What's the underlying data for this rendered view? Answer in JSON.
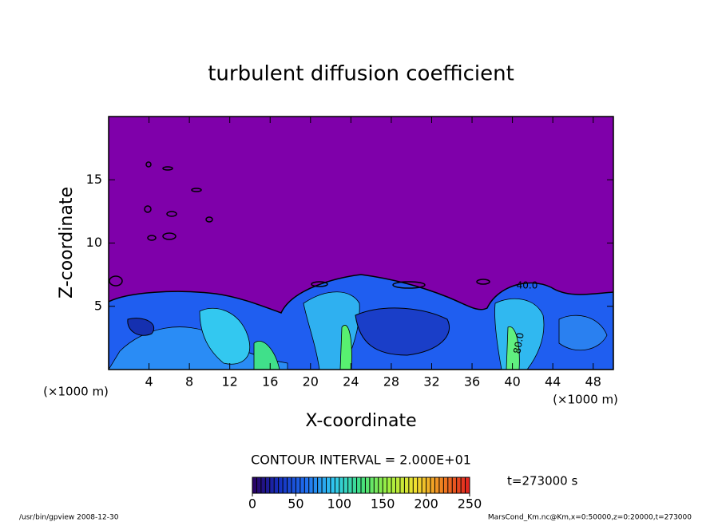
{
  "chart_data": {
    "type": "contour",
    "title": "turbulent diffusion coefficient",
    "x_label": "X-coordinate",
    "y_label": "Z-coordinate",
    "x_unit": "(×1000 m)",
    "y_unit": "(×1000 m)",
    "xlim": [
      0,
      50
    ],
    "ylim": [
      0,
      20
    ],
    "xticks": [
      4,
      8,
      12,
      16,
      20,
      24,
      28,
      32,
      36,
      40,
      44,
      48
    ],
    "yticks": [
      5,
      10,
      15
    ],
    "contour_interval": "CONTOUR INTERVAL = 2.000E+01",
    "contour_labels": [
      "40.0",
      "80.0"
    ],
    "time_label": "t=273000 s",
    "background_color": "#7f00aa",
    "colorbar": {
      "range": [
        0,
        250
      ],
      "ticks": [
        0,
        50,
        100,
        150,
        200,
        250
      ],
      "colors": [
        "#2a0060",
        "#1530c0",
        "#2070f0",
        "#30c8f0",
        "#40e080",
        "#a0f040",
        "#f0e030",
        "#f08020",
        "#e02020"
      ]
    }
  },
  "footer": {
    "left": "/usr/bin/gpview   2008-12-30",
    "right": "MarsCond_Km.nc@Km,x=0:50000,z=0:20000,t=273000"
  }
}
